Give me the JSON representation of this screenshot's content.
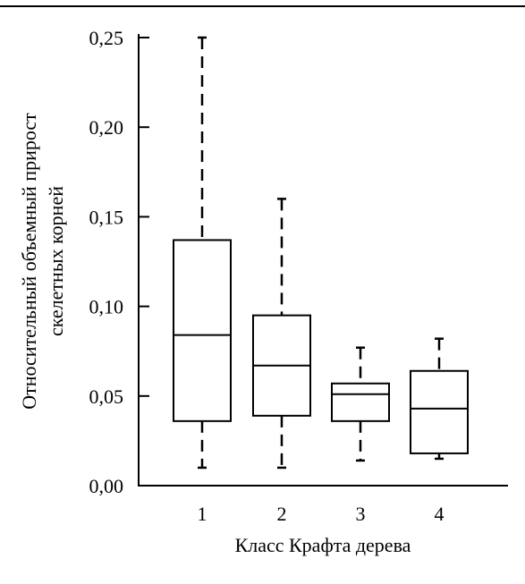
{
  "chart_data": {
    "type": "box",
    "xlabel": "Класс Крафта дерева",
    "ylabel_lines": [
      "Относительный объемный прирост",
      "скелетных корней"
    ],
    "ylim": [
      0.0,
      0.25
    ],
    "yticks": [
      {
        "value": 0.0,
        "label": "0,00"
      },
      {
        "value": 0.05,
        "label": "0,05"
      },
      {
        "value": 0.1,
        "label": "0,10"
      },
      {
        "value": 0.15,
        "label": "0,15"
      },
      {
        "value": 0.2,
        "label": "0,20"
      },
      {
        "value": 0.25,
        "label": "0,25"
      }
    ],
    "categories": [
      "1",
      "2",
      "3",
      "4"
    ],
    "boxes": [
      {
        "category": "1",
        "whisker_low": 0.01,
        "q1": 0.036,
        "median": 0.084,
        "q3": 0.137,
        "whisker_high": 0.25
      },
      {
        "category": "2",
        "whisker_low": 0.01,
        "q1": 0.039,
        "median": 0.067,
        "q3": 0.095,
        "whisker_high": 0.16
      },
      {
        "category": "3",
        "whisker_low": 0.014,
        "q1": 0.036,
        "median": 0.051,
        "q3": 0.057,
        "whisker_high": 0.077
      },
      {
        "category": "4",
        "whisker_low": 0.015,
        "q1": 0.018,
        "median": 0.043,
        "q3": 0.064,
        "whisker_high": 0.082
      }
    ],
    "grid": false,
    "legend": "none"
  }
}
